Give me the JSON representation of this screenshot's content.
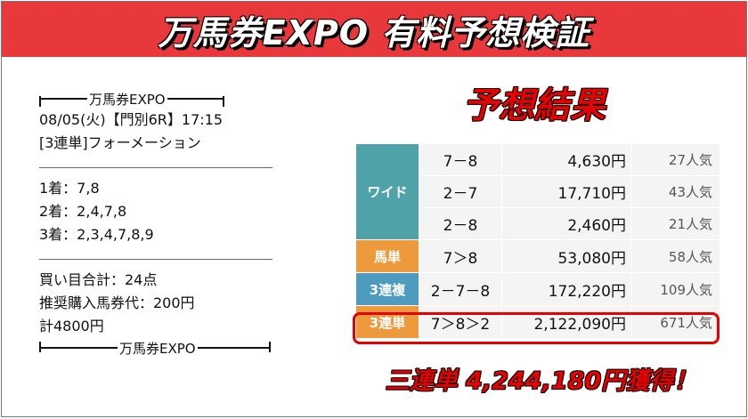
{
  "banner": {
    "title": "万馬券EXPO 有料予想検証"
  },
  "ticket": {
    "header_label": "万馬券EXPO",
    "footer_label": "万馬券EXPO",
    "race_line": "08/05(火)【門別6R】17:15",
    "bet_type_line": "[3連単]フォーメーション",
    "first_line": "1着：7,8",
    "second_line": "2着：2,4,7,8",
    "third_line": "3着：2,3,4,7,8,9",
    "total_points_line": "買い目合計：24点",
    "recommended_line": "推奨購入馬券代：200円",
    "total_cost_line": "計4800円"
  },
  "result": {
    "title": "予想結果",
    "wide": {
      "label": "ワイド",
      "rows": [
        {
          "combo": "7－8",
          "payout": "4,630円",
          "popularity": "27人気"
        },
        {
          "combo": "2－7",
          "payout": "17,710円",
          "popularity": "43人気"
        },
        {
          "combo": "2－8",
          "payout": "2,460円",
          "popularity": "21人気"
        }
      ]
    },
    "umatan": {
      "label": "馬単",
      "combo": "7＞8",
      "payout": "53,080円",
      "popularity": "58人気"
    },
    "sanrenpuku": {
      "label": "3連複",
      "combo": "2－7－8",
      "payout": "172,220円",
      "popularity": "109人気"
    },
    "sanrentan": {
      "label": "3連単",
      "combo": "7＞8＞2",
      "payout": "2,122,090円",
      "popularity": "671人気"
    },
    "summary": "三連単 4,244,180円獲得！"
  },
  "colors": {
    "banner_red": "#e8383b",
    "accent_red": "#e60000",
    "wide_teal": "#4fa3a8",
    "orange": "#ec9a3c",
    "blue": "#4d9cc0"
  }
}
